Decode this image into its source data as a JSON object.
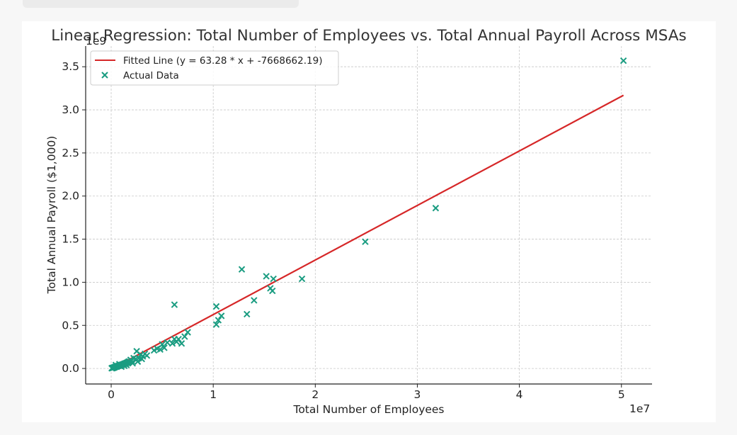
{
  "chart_data": {
    "type": "scatter",
    "title": "Linear Regression: Total Number of Employees vs. Total Annual Payroll Across MSAs",
    "xlabel": "Total Number of Employees",
    "ylabel": "Total Annual Payroll ($1,000)",
    "x_offset_label": "1e7",
    "y_offset_label": "1e9",
    "xlim": [
      -2500000,
      53000000
    ],
    "ylim": [
      -180000000,
      3740000000
    ],
    "grid": true,
    "legend_position": "top-left",
    "x_ticks": [
      0,
      10000000,
      20000000,
      30000000,
      40000000,
      50000000
    ],
    "x_tick_labels": [
      "0",
      "1",
      "2",
      "3",
      "4",
      "5"
    ],
    "y_ticks": [
      0,
      500000000,
      1000000000,
      1500000000,
      2000000000,
      2500000000,
      3000000000,
      3500000000
    ],
    "y_tick_labels": [
      "0.0",
      "0.5",
      "1.0",
      "1.5",
      "2.0",
      "2.5",
      "3.0",
      "3.5"
    ],
    "colors": {
      "fitted_line": "#d62728",
      "points": "#1a9c81",
      "grid": "#c8c8c8",
      "axes": "#222222"
    },
    "fitted_line": {
      "label": "Fitted Line (y = 63.28 * x + -7668662.19)",
      "slope": 63.28,
      "intercept": -7668662.19,
      "x_range": [
        0,
        50200000
      ]
    },
    "scatter": {
      "label": "Actual Data",
      "points": [
        [
          50200000,
          3570000000
        ],
        [
          31800000,
          1860000000
        ],
        [
          24900000,
          1470000000
        ],
        [
          18700000,
          1040000000
        ],
        [
          15900000,
          1040000000
        ],
        [
          15200000,
          1070000000
        ],
        [
          15600000,
          930000000
        ],
        [
          15800000,
          900000000
        ],
        [
          14000000,
          790000000
        ],
        [
          13300000,
          630000000
        ],
        [
          12800000,
          1150000000
        ],
        [
          10800000,
          610000000
        ],
        [
          10500000,
          560000000
        ],
        [
          10300000,
          510000000
        ],
        [
          10300000,
          720000000
        ],
        [
          6200000,
          740000000
        ],
        [
          7500000,
          420000000
        ],
        [
          7200000,
          370000000
        ],
        [
          6900000,
          290000000
        ],
        [
          6600000,
          340000000
        ],
        [
          6400000,
          310000000
        ],
        [
          6200000,
          340000000
        ],
        [
          6000000,
          290000000
        ],
        [
          5500000,
          300000000
        ],
        [
          5200000,
          240000000
        ],
        [
          5000000,
          280000000
        ],
        [
          4800000,
          220000000
        ],
        [
          4500000,
          230000000
        ],
        [
          4200000,
          210000000
        ],
        [
          3500000,
          150000000
        ],
        [
          3300000,
          170000000
        ],
        [
          3100000,
          140000000
        ],
        [
          2900000,
          160000000
        ],
        [
          2700000,
          120000000
        ],
        [
          2500000,
          200000000
        ],
        [
          2400000,
          110000000
        ],
        [
          2200000,
          120000000
        ],
        [
          2000000,
          90000000
        ],
        [
          1900000,
          100000000
        ],
        [
          1800000,
          80000000
        ],
        [
          1700000,
          80000000
        ],
        [
          1600000,
          70000000
        ],
        [
          1500000,
          65000000
        ],
        [
          1400000,
          60000000
        ],
        [
          1300000,
          55000000
        ],
        [
          1200000,
          50000000
        ],
        [
          1100000,
          45000000
        ],
        [
          1000000,
          42000000
        ],
        [
          900000,
          38000000
        ],
        [
          800000,
          33000000
        ],
        [
          700000,
          30000000
        ],
        [
          600000,
          26000000
        ],
        [
          500000,
          22000000
        ],
        [
          450000,
          40000000
        ],
        [
          400000,
          18000000
        ],
        [
          350000,
          15000000
        ],
        [
          300000,
          12000000
        ],
        [
          250000,
          10000000
        ],
        [
          200000,
          8000000
        ],
        [
          150000,
          6000000
        ],
        [
          100000,
          5000000
        ],
        [
          50000,
          3000000
        ],
        [
          1500000,
          40000000
        ],
        [
          2100000,
          60000000
        ],
        [
          2600000,
          80000000
        ],
        [
          3000000,
          110000000
        ],
        [
          800000,
          50000000
        ],
        [
          1000000,
          20000000
        ],
        [
          1300000,
          30000000
        ]
      ]
    }
  }
}
